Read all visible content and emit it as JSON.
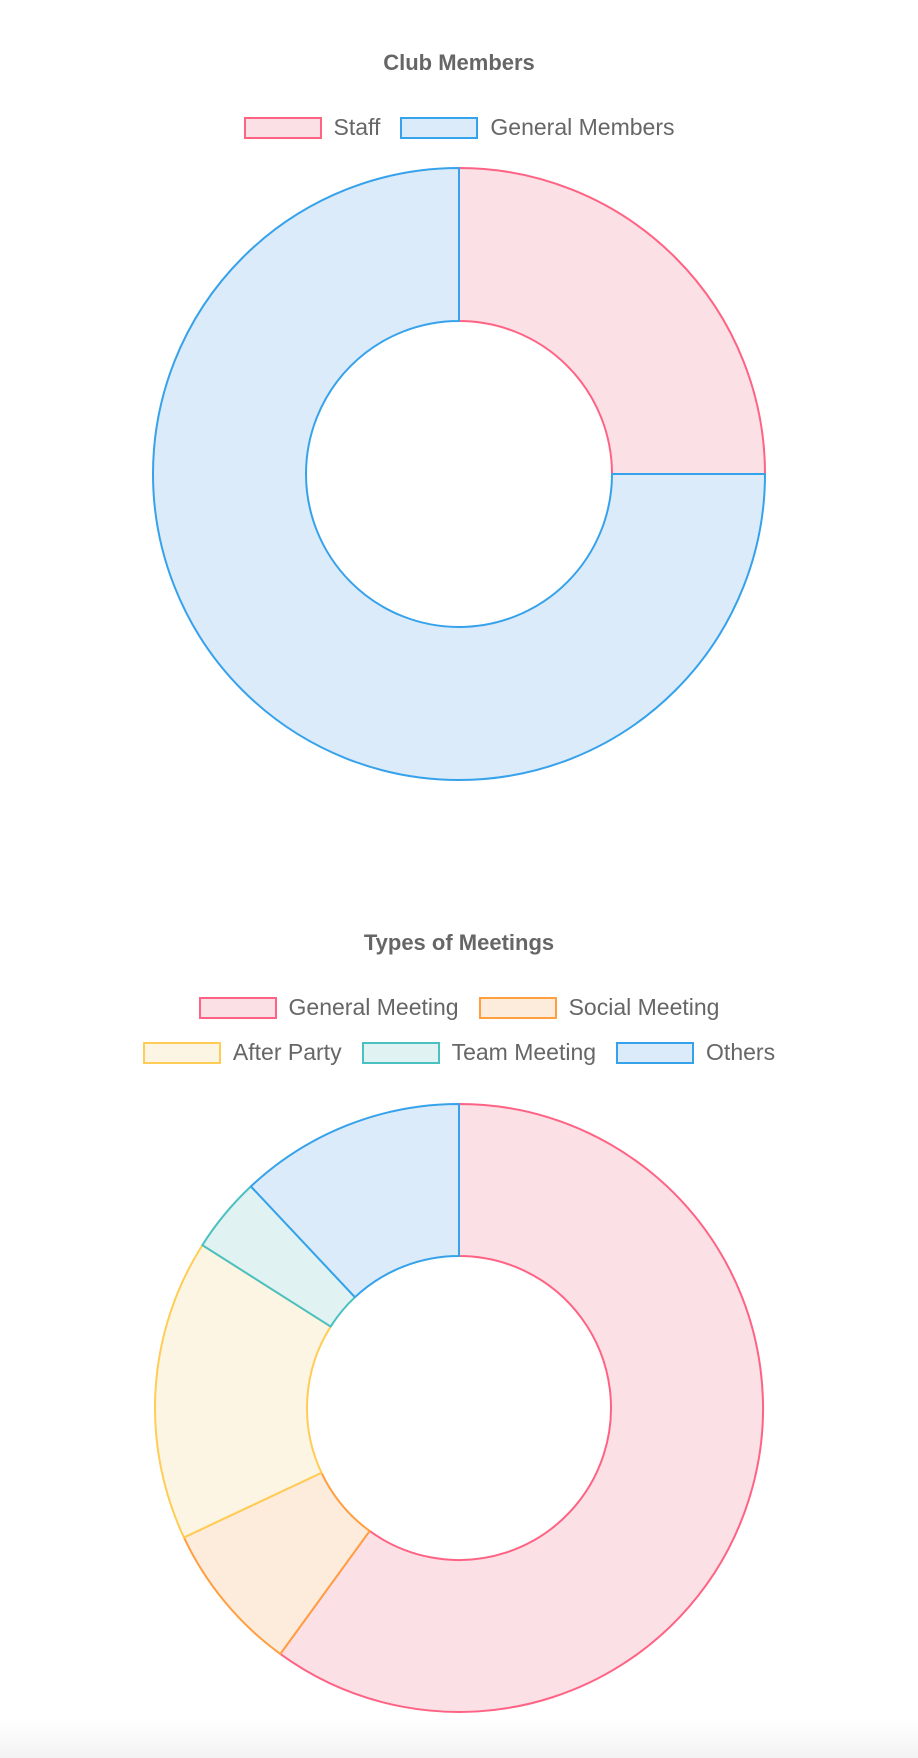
{
  "chart_data": [
    {
      "type": "doughnut",
      "title": "Club Members",
      "legend_position": "top",
      "labels": [
        "Staff",
        "General Members"
      ],
      "values": [
        25,
        75
      ],
      "border_colors": [
        "#FF6384",
        "#36A2EB"
      ],
      "fill_colors": [
        "#FBE0E6",
        "#DCEBF9"
      ]
    },
    {
      "type": "doughnut",
      "title": "Types of Meetings",
      "legend_position": "top",
      "labels": [
        "General Meeting",
        "Social Meeting",
        "After Party",
        "Team Meeting",
        "Others"
      ],
      "values": [
        60,
        8,
        16,
        4,
        12
      ],
      "border_colors": [
        "#FF6384",
        "#FF9F40",
        "#FFCD56",
        "#4BC0C0",
        "#36A2EB"
      ],
      "fill_colors": [
        "#FBE0E6",
        "#FDEBDC",
        "#FDF5E3",
        "#E0F2F1",
        "#DCEBF9"
      ]
    }
  ]
}
